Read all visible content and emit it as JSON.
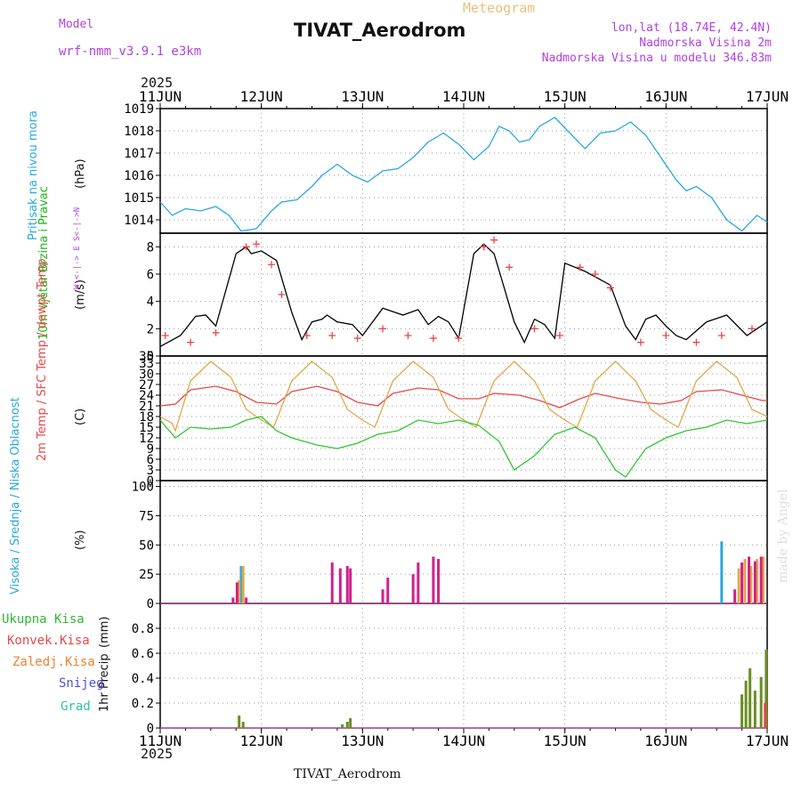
{
  "header": {
    "title": "TIVAT_Aerodrom",
    "model_label": "Model",
    "model_name": "wrf-nmm_v3.9.1  e3km",
    "product": "Meteogram",
    "lonlat": "lon,lat (18.74E, 42.4N)",
    "altitude": "Nadmorska Visina 2m",
    "model_altitude": "Nadmorska Visina u modelu 346.83m",
    "footer_station": "TIVAT_Aerodrom",
    "credit": "made by Angel",
    "year_top": "2025",
    "year_bottom": "2025"
  },
  "colors": {
    "pressure": "#29a8e0",
    "wind_label": "#18b818",
    "direction_label": "#b040e0",
    "temp2m": "#e84848",
    "sfc": "#e0a848",
    "dew": "#30c830",
    "high_cloud": "#29a8e0",
    "mid_cloud": "#e0a848",
    "low_cloud": "#d0208c",
    "total_rain": "#30b830",
    "conv_rain": "#e84848",
    "freezing_rain": "#f08030",
    "snow": "#5050e0",
    "hail": "#30c0b0",
    "bar_total": "#6b8e23"
  },
  "chart_data": [
    {
      "type": "line",
      "title": "Pritisak na nivou mora",
      "ylabel": "(hPa)",
      "ylim": [
        1013.4,
        1019.0
      ],
      "yticks": [
        1014,
        1015,
        1016,
        1017,
        1018,
        1019
      ],
      "x_ticks": [
        "11JUN",
        "12JUN",
        "13JUN",
        "14JUN",
        "15JUN",
        "16JUN",
        "17JUN"
      ],
      "series": [
        {
          "name": "Pritisak na nivou mora",
          "color": "#29a8e0",
          "x": [
            0,
            0.12,
            0.25,
            0.4,
            0.55,
            0.68,
            0.8,
            0.95,
            1.1,
            1.2,
            1.35,
            1.5,
            1.6,
            1.75,
            1.9,
            2.05,
            2.2,
            2.35,
            2.5,
            2.65,
            2.8,
            2.95,
            3.1,
            3.25,
            3.35,
            3.45,
            3.55,
            3.65,
            3.75,
            3.9,
            4.05,
            4.2,
            4.35,
            4.5,
            4.65,
            4.8,
            4.95,
            5.1,
            5.2,
            5.3,
            5.45,
            5.6,
            5.75,
            5.9,
            6.0
          ],
          "values": [
            1014.8,
            1014.2,
            1014.5,
            1014.4,
            1014.6,
            1014.2,
            1013.5,
            1013.6,
            1014.4,
            1014.8,
            1014.9,
            1015.5,
            1016.0,
            1016.5,
            1016.0,
            1015.7,
            1016.2,
            1016.3,
            1016.8,
            1017.5,
            1017.9,
            1017.4,
            1016.7,
            1017.3,
            1018.2,
            1018.0,
            1017.5,
            1017.6,
            1018.2,
            1018.6,
            1017.9,
            1017.2,
            1017.9,
            1018.0,
            1018.4,
            1017.8,
            1016.8,
            1015.8,
            1015.3,
            1015.5,
            1015.0,
            1014.0,
            1013.5,
            1014.2,
            1013.9
          ]
        }
      ]
    },
    {
      "type": "line",
      "title": "10m Vjetar Brzina i Pravac",
      "ylabel": "(m/s)",
      "direction_legend": "W <-|-> E  S<-|->N",
      "ylim": [
        0,
        9
      ],
      "yticks": [
        0,
        2,
        4,
        6,
        8
      ],
      "series": [
        {
          "name": "Brzina vjetra",
          "color": "#000000",
          "x": [
            0,
            0.2,
            0.35,
            0.45,
            0.55,
            0.75,
            0.85,
            0.9,
            1.0,
            1.15,
            1.3,
            1.4,
            1.5,
            1.6,
            1.65,
            1.75,
            1.9,
            2.0,
            2.2,
            2.4,
            2.55,
            2.65,
            2.75,
            2.85,
            2.95,
            3.1,
            3.2,
            3.3,
            3.4,
            3.5,
            3.6,
            3.7,
            3.8,
            3.9,
            4.0,
            4.2,
            4.45,
            4.6,
            4.7,
            4.8,
            4.9,
            5.0,
            5.1,
            5.2,
            5.4,
            5.6,
            5.8,
            6.0
          ],
          "values": [
            0.7,
            1.5,
            2.9,
            3.0,
            2.2,
            7.5,
            8.0,
            7.5,
            7.7,
            7.0,
            3.2,
            1.2,
            2.5,
            2.7,
            3.0,
            2.5,
            2.3,
            1.5,
            3.5,
            3.0,
            3.4,
            2.3,
            2.9,
            2.5,
            1.3,
            7.5,
            8.2,
            7.5,
            5.0,
            2.5,
            1.0,
            2.7,
            2.3,
            1.3,
            6.8,
            6.2,
            5.2,
            2.2,
            1.2,
            2.7,
            3.0,
            2.2,
            1.5,
            1.2,
            2.5,
            3.0,
            1.5,
            2.5
          ]
        },
        {
          "name": "Udari (+)",
          "color": "#e84848",
          "x": [
            0.05,
            0.3,
            0.55,
            0.85,
            0.95,
            1.1,
            1.2,
            1.45,
            1.7,
            1.95,
            2.2,
            2.45,
            2.7,
            2.95,
            3.2,
            3.3,
            3.45,
            3.7,
            3.95,
            4.15,
            4.3,
            4.45,
            4.75,
            5.0,
            5.3,
            5.55,
            5.85
          ],
          "values": [
            1.5,
            1.0,
            1.7,
            8.0,
            8.2,
            6.7,
            4.5,
            1.5,
            1.5,
            1.3,
            2.0,
            1.5,
            1.3,
            1.3,
            8.0,
            8.5,
            6.5,
            2.0,
            1.5,
            6.5,
            6.0,
            5.0,
            1.0,
            1.5,
            1.0,
            1.5,
            2.0
          ]
        }
      ]
    },
    {
      "type": "line",
      "title": "2m Temp / SFC Temp / dewpt Temp",
      "ylabel": "(C)",
      "ylim": [
        0,
        35
      ],
      "yticks": [
        0,
        3,
        6,
        9,
        12,
        15,
        18,
        21,
        24,
        27,
        30,
        33,
        35
      ],
      "series": [
        {
          "name": "2m Temp",
          "color": "#e84848",
          "x": [
            0,
            0.15,
            0.3,
            0.55,
            0.75,
            0.95,
            1.15,
            1.3,
            1.55,
            1.75,
            1.95,
            2.15,
            2.3,
            2.55,
            2.75,
            2.95,
            3.15,
            3.3,
            3.55,
            3.75,
            3.95,
            4.15,
            4.3,
            4.55,
            4.75,
            4.95,
            5.15,
            5.3,
            5.55,
            5.75,
            5.95,
            6.0
          ],
          "values": [
            21,
            21.5,
            25.5,
            26.5,
            25,
            22,
            21.5,
            25,
            26.5,
            25,
            22,
            21,
            24.5,
            26,
            25.5,
            23,
            23,
            24.5,
            24,
            22.5,
            20.5,
            23,
            24.5,
            23,
            22,
            21.5,
            22.5,
            25,
            25.5,
            24,
            22.5,
            22.5
          ]
        },
        {
          "name": "SFC Temp",
          "color": "#e0a848",
          "x": [
            0,
            0.12,
            0.15,
            0.3,
            0.5,
            0.7,
            0.85,
            1.0,
            1.12,
            1.15,
            1.3,
            1.5,
            1.7,
            1.85,
            2.0,
            2.12,
            2.15,
            2.3,
            2.5,
            2.7,
            2.85,
            3.0,
            3.12,
            3.15,
            3.3,
            3.5,
            3.7,
            3.85,
            4.0,
            4.12,
            4.15,
            4.3,
            4.5,
            4.7,
            4.85,
            5.0,
            5.12,
            5.15,
            5.3,
            5.5,
            5.7,
            5.85,
            6.0
          ],
          "values": [
            18,
            16,
            14,
            28,
            33.5,
            29,
            20,
            17,
            15,
            17,
            28,
            33.5,
            29,
            20,
            17,
            15,
            17,
            28,
            33.5,
            29,
            20,
            17,
            15,
            17,
            28,
            33.5,
            28,
            20,
            17,
            15,
            17,
            28,
            33.5,
            28,
            20,
            17,
            15,
            17,
            28,
            33.5,
            29,
            20,
            18
          ]
        },
        {
          "name": "dewpt Temp",
          "color": "#30c830",
          "x": [
            0,
            0.15,
            0.3,
            0.5,
            0.7,
            0.85,
            1.0,
            1.15,
            1.3,
            1.55,
            1.75,
            1.95,
            2.15,
            2.35,
            2.55,
            2.75,
            2.95,
            3.15,
            3.35,
            3.5,
            3.7,
            3.9,
            4.1,
            4.3,
            4.5,
            4.6,
            4.8,
            5.0,
            5.2,
            5.4,
            5.6,
            5.8,
            6.0
          ],
          "values": [
            17,
            12,
            15,
            14.5,
            15,
            17,
            18,
            14,
            12,
            10,
            9,
            10.5,
            13,
            14,
            17,
            16,
            17,
            15.5,
            11,
            3,
            7,
            13,
            15,
            12,
            3,
            1,
            9,
            12,
            14,
            15,
            17,
            16,
            17
          ]
        }
      ]
    },
    {
      "type": "bar",
      "title": "Visoka / Srednja / Niska Oblacnost",
      "ylabel": "(%)",
      "ylim": [
        0,
        105
      ],
      "yticks": [
        0,
        25,
        50,
        75,
        100
      ],
      "series": [
        {
          "name": "Visoka Oblacnost",
          "color": "#29a8e0",
          "x": [
            0.8,
            5.55
          ],
          "values": [
            32,
            53
          ]
        },
        {
          "name": "Srednja Oblacnost",
          "color": "#e0a848",
          "x": [
            0.78,
            0.82,
            5.72,
            5.78,
            5.84,
            5.9,
            5.96
          ],
          "values": [
            20,
            32,
            30,
            38,
            32,
            38,
            40
          ]
        },
        {
          "name": "Niska Oblacnost",
          "color": "#d0208c",
          "x": [
            0.72,
            0.76,
            0.85,
            1.7,
            1.78,
            1.85,
            1.88,
            2.2,
            2.25,
            2.5,
            2.55,
            2.7,
            2.75,
            5.68,
            5.75,
            5.82,
            5.88,
            5.94
          ],
          "values": [
            5,
            18,
            5,
            35,
            30,
            32,
            30,
            12,
            22,
            25,
            35,
            40,
            38,
            12,
            35,
            40,
            36,
            40
          ]
        }
      ]
    },
    {
      "type": "bar",
      "title": "1hr Precip",
      "ylabel": "(mm)",
      "ylim": [
        0,
        1.0
      ],
      "yticks": [
        0,
        0.2,
        0.4,
        0.6,
        0.8
      ],
      "legend": [
        "Ukupna Kisa",
        "Konvek.Kisa",
        "Zaledj.Kisa",
        "Snijeg",
        "Grad"
      ],
      "series": [
        {
          "name": "Ukupna Kisa",
          "color": "#6b8e23",
          "x": [
            0.78,
            0.82,
            1.8,
            1.85,
            1.88,
            5.75,
            5.79,
            5.83,
            5.88,
            5.94,
            5.99
          ],
          "values": [
            0.1,
            0.05,
            0.03,
            0.05,
            0.08,
            0.27,
            0.38,
            0.48,
            0.3,
            0.41,
            0.63
          ]
        },
        {
          "name": "Konvek.Kisa",
          "color": "#e84848",
          "x": [
            5.98
          ],
          "values": [
            0.2
          ]
        }
      ]
    }
  ]
}
